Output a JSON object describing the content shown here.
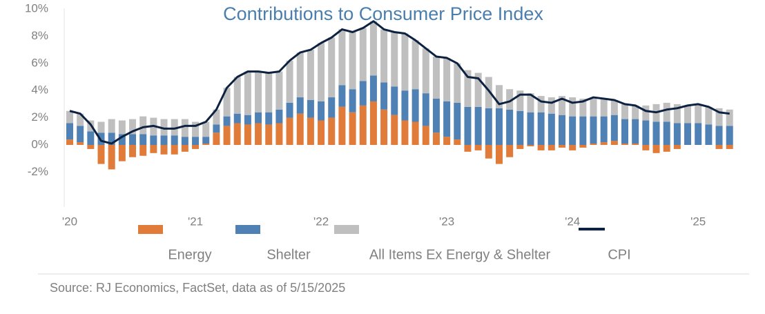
{
  "chart_data": {
    "type": "stacked-bar-line",
    "title": "Contributions to Consumer Price Index",
    "source": "Source: RJ Economics, FactSet, data as of 5/15/2025",
    "categories": [
      "'20",
      null,
      null,
      null,
      null,
      null,
      null,
      null,
      null,
      null,
      null,
      null,
      "'21",
      null,
      null,
      null,
      null,
      null,
      null,
      null,
      null,
      null,
      null,
      null,
      "'22",
      null,
      null,
      null,
      null,
      null,
      null,
      null,
      null,
      null,
      null,
      null,
      "'23",
      null,
      null,
      null,
      null,
      null,
      null,
      null,
      null,
      null,
      null,
      null,
      "'24",
      null,
      null,
      null,
      null,
      null,
      null,
      null,
      null,
      null,
      null,
      null,
      "'25",
      null,
      null,
      null
    ],
    "ylim": [
      -2,
      10
    ],
    "yticks": [
      {
        "value": -2,
        "label": "-2%"
      },
      {
        "value": 0,
        "label": "0%"
      },
      {
        "value": 2,
        "label": "2%"
      },
      {
        "value": 4,
        "label": "4%"
      },
      {
        "value": 6,
        "label": "6%"
      },
      {
        "value": 8,
        "label": "8%"
      },
      {
        "value": 10,
        "label": "10%"
      }
    ],
    "series": [
      {
        "name": "Energy",
        "kind": "bar",
        "color": "#e07b39",
        "values": [
          0.4,
          0.2,
          -0.3,
          -1.4,
          -1.8,
          -1.2,
          -0.9,
          -0.8,
          -0.6,
          -0.7,
          -0.7,
          -0.5,
          -0.3,
          0.1,
          0.9,
          1.4,
          1.6,
          1.5,
          1.6,
          1.5,
          1.6,
          2.0,
          2.3,
          2.0,
          1.8,
          2.0,
          2.8,
          2.4,
          2.9,
          3.2,
          2.6,
          2.2,
          1.8,
          1.7,
          1.4,
          0.9,
          0.6,
          0.4,
          -0.5,
          -0.4,
          -1.0,
          -1.4,
          -0.9,
          -0.3,
          -0.1,
          -0.4,
          -0.4,
          -0.2,
          -0.4,
          -0.2,
          0.1,
          0.2,
          0.3,
          0.1,
          0.1,
          -0.4,
          -0.6,
          -0.5,
          -0.3,
          0.0,
          0.0,
          0.0,
          -0.3,
          -0.3
        ]
      },
      {
        "name": "Shelter",
        "kind": "bar",
        "color": "#4f81b4",
        "values": [
          1.2,
          1.2,
          1.0,
          0.9,
          0.9,
          0.8,
          0.8,
          0.8,
          0.7,
          0.7,
          0.7,
          0.6,
          0.6,
          0.5,
          0.6,
          0.7,
          0.7,
          0.7,
          0.8,
          0.9,
          1.0,
          1.1,
          1.2,
          1.3,
          1.4,
          1.5,
          1.6,
          1.7,
          1.8,
          1.9,
          2.0,
          2.1,
          2.2,
          2.4,
          2.4,
          2.5,
          2.6,
          2.7,
          2.8,
          2.8,
          2.7,
          2.7,
          2.6,
          2.5,
          2.4,
          2.4,
          2.3,
          2.2,
          2.1,
          2.1,
          2.0,
          1.9,
          1.9,
          1.8,
          1.8,
          1.8,
          1.7,
          1.7,
          1.6,
          1.6,
          1.6,
          1.5,
          1.4,
          1.4
        ]
      },
      {
        "name": "All Items Ex Energy & Shelter",
        "kind": "bar",
        "color": "#bfbfbf",
        "values": [
          0.9,
          0.9,
          0.8,
          0.8,
          1.0,
          1.0,
          1.1,
          1.3,
          1.3,
          1.2,
          1.2,
          1.3,
          1.1,
          1.1,
          1.1,
          2.1,
          2.7,
          3.2,
          3.0,
          2.9,
          2.8,
          3.1,
          3.3,
          3.7,
          4.3,
          4.4,
          4.1,
          4.2,
          3.9,
          4.0,
          3.9,
          4.0,
          4.2,
          3.6,
          3.3,
          3.1,
          3.2,
          2.9,
          2.7,
          2.5,
          2.3,
          1.7,
          1.5,
          1.5,
          1.4,
          1.2,
          1.2,
          1.4,
          1.4,
          1.3,
          1.4,
          1.3,
          1.1,
          1.1,
          1.0,
          1.1,
          1.3,
          1.4,
          1.4,
          1.3,
          1.4,
          1.3,
          1.3,
          1.2
        ]
      },
      {
        "name": "CPI",
        "kind": "line",
        "color": "#0d2240",
        "values": [
          2.5,
          2.3,
          1.5,
          0.3,
          0.1,
          0.6,
          1.0,
          1.3,
          1.4,
          1.2,
          1.2,
          1.4,
          1.4,
          1.7,
          2.6,
          4.2,
          5.0,
          5.4,
          5.4,
          5.3,
          5.4,
          6.2,
          6.8,
          7.0,
          7.5,
          7.9,
          8.5,
          8.3,
          8.6,
          9.1,
          8.5,
          8.3,
          8.2,
          7.7,
          7.1,
          6.5,
          6.4,
          6.0,
          5.0,
          4.9,
          4.0,
          3.0,
          3.2,
          3.7,
          3.7,
          3.2,
          3.1,
          3.4,
          3.1,
          3.2,
          3.5,
          3.4,
          3.3,
          3.0,
          2.9,
          2.5,
          2.4,
          2.6,
          2.7,
          2.9,
          3.0,
          2.8,
          2.4,
          2.3
        ]
      }
    ]
  }
}
